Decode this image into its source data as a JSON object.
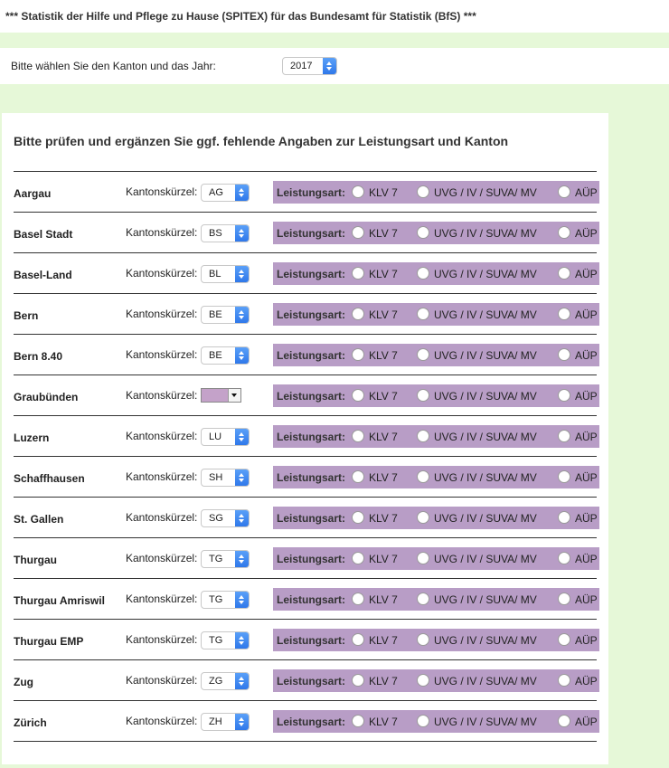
{
  "header": {
    "title": "*** Statistik der Hilfe und Pflege zu Hause (SPITEX) für das Bundesamt für Statistik (BfS) ***"
  },
  "year_select": {
    "label": "Bitte wählen Sie den Kanton und das Jahr:",
    "value": "2017"
  },
  "main": {
    "title": "Bitte prüfen und ergänzen Sie ggf. fehlende Angaben zur Leistungsart und Kanton",
    "kanton_label": "Kantonskürzel:",
    "leistungsart_label": "Leistungsart:",
    "options": [
      "KLV 7",
      "UVG / IV / SUVA/ MV",
      "AÜP"
    ],
    "rows": [
      {
        "name": "Aargau",
        "code": "AG"
      },
      {
        "name": "Basel Stadt",
        "code": "BS"
      },
      {
        "name": "Basel-Land",
        "code": "BL"
      },
      {
        "name": "Bern",
        "code": "BE"
      },
      {
        "name": "Bern 8.40",
        "code": "BE"
      },
      {
        "name": "Graubünden",
        "code": ""
      },
      {
        "name": "Luzern",
        "code": "LU"
      },
      {
        "name": "Schaffhausen",
        "code": "SH"
      },
      {
        "name": "St. Gallen",
        "code": "SG"
      },
      {
        "name": "Thurgau",
        "code": "TG"
      },
      {
        "name": "Thurgau Amriswil",
        "code": "TG"
      },
      {
        "name": "Thurgau EMP",
        "code": "TG"
      },
      {
        "name": "Zug",
        "code": "ZG"
      },
      {
        "name": "Zürich",
        "code": "ZH"
      }
    ]
  },
  "colors": {
    "page_bg": "#e6f8d8",
    "leistungsart_bg": "#b89dc6",
    "select_arrow": "#2f78ea"
  }
}
